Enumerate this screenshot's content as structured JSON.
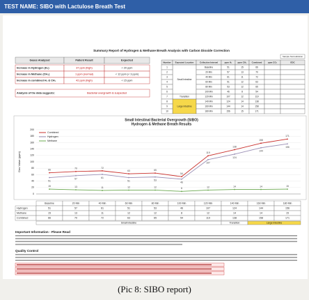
{
  "header": {
    "title": "TEST NAME: SIBO with Lactulose Breath Test"
  },
  "summary": {
    "title": "Summary Report of Hydrogen & Methane Breath Analysis with Carbon Dioxide Correction",
    "columns": [
      "Gases Analyzed",
      "Patient Result",
      "Expected"
    ],
    "rows": [
      [
        "Increase in Hydrogen (H₂)",
        "37 ppm (high)",
        "< 20 ppm"
      ],
      [
        "Increase in Methane (CH₄)",
        "1 ppm (normal)",
        "< 12 ppm (< 3 ppm)"
      ],
      [
        "Increase in combined H₂ & CH₄",
        "42 ppm (high)",
        "< 15 ppm"
      ]
    ],
    "conclusion": [
      "Analysis of the data suggests:",
      "Bacterial overgrowth is suspected"
    ]
  },
  "results_table": {
    "note": "Sample Normalization",
    "columns": [
      "Number",
      "Expected Location",
      "Collection Interval",
      "ppm H₂",
      "ppm CH₄",
      "Combined",
      "ppm CO₂",
      "EDC"
    ],
    "numbers": [
      1,
      2,
      3,
      4,
      5,
      6,
      7,
      8,
      9,
      10
    ],
    "locations": [
      "Small Intestine",
      "Transition",
      "Large Intestine"
    ]
  },
  "chart_data": {
    "type": "line",
    "title": "Small Intestinal Bacterial Overgrowth (SIBO)",
    "subtitle": "Hydrogen & Methane Breath Results",
    "y_label": "Gas Value (ppm)",
    "categories": [
      "Baseline",
      "20 Min",
      "40 Min",
      "60 Min",
      "80 Min",
      "100 Min",
      "120 Min",
      "140 Min",
      "160 Min",
      "180 Min"
    ],
    "series": [
      {
        "name": "Combined",
        "color": "#c9302c",
        "values": [
          66,
          70,
          72,
          63,
          65,
          54,
          119,
          138,
          158,
          171
        ]
      },
      {
        "name": "Hydrogen",
        "color": "#9a8fb5",
        "values": [
          51,
          57,
          61,
          51,
          53,
          46,
          107,
          124,
          144,
          156
        ]
      },
      {
        "name": "Methane",
        "color": "#6aa84f",
        "values": [
          15,
          13,
          11,
          12,
          12,
          8,
          12,
          14,
          14,
          15
        ]
      }
    ],
    "ylim": [
      0,
      200
    ],
    "yticks": [
      0,
      20,
      40,
      60,
      80,
      100,
      120,
      140,
      160,
      180,
      200
    ],
    "grid": true,
    "legend": "upper-left"
  },
  "location_bar": [
    "Small Intestine",
    "Transition",
    "Large Intestine"
  ],
  "notes": {
    "important_title": "Important Information - Please Read",
    "quality_title": "Quality Control"
  },
  "caption": "(Pic 8: SIBO report)"
}
